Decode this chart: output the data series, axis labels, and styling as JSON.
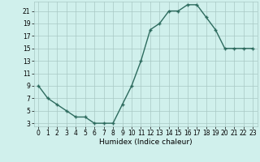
{
  "x": [
    0,
    1,
    2,
    3,
    4,
    5,
    6,
    7,
    8,
    9,
    10,
    11,
    12,
    13,
    14,
    15,
    16,
    17,
    18,
    19,
    20,
    21,
    22,
    23
  ],
  "y": [
    9,
    7,
    6,
    5,
    4,
    4,
    3,
    3,
    3,
    6,
    9,
    13,
    18,
    19,
    21,
    21,
    22,
    22,
    20,
    18,
    15,
    15,
    15,
    15
  ],
  "line_color": "#2d6b5e",
  "bg_color": "#d0f0ec",
  "grid_color": "#a8c8c4",
  "xlabel": "Humidex (Indice chaleur)",
  "ylim_min": 2.5,
  "ylim_max": 22.5,
  "xlim_min": -0.5,
  "xlim_max": 23.5,
  "yticks": [
    3,
    5,
    7,
    9,
    11,
    13,
    15,
    17,
    19,
    21
  ],
  "xticks": [
    0,
    1,
    2,
    3,
    4,
    5,
    6,
    7,
    8,
    9,
    10,
    11,
    12,
    13,
    14,
    15,
    16,
    17,
    18,
    19,
    20,
    21,
    22,
    23
  ],
  "label_fontsize": 6.5,
  "tick_fontsize": 5.5
}
